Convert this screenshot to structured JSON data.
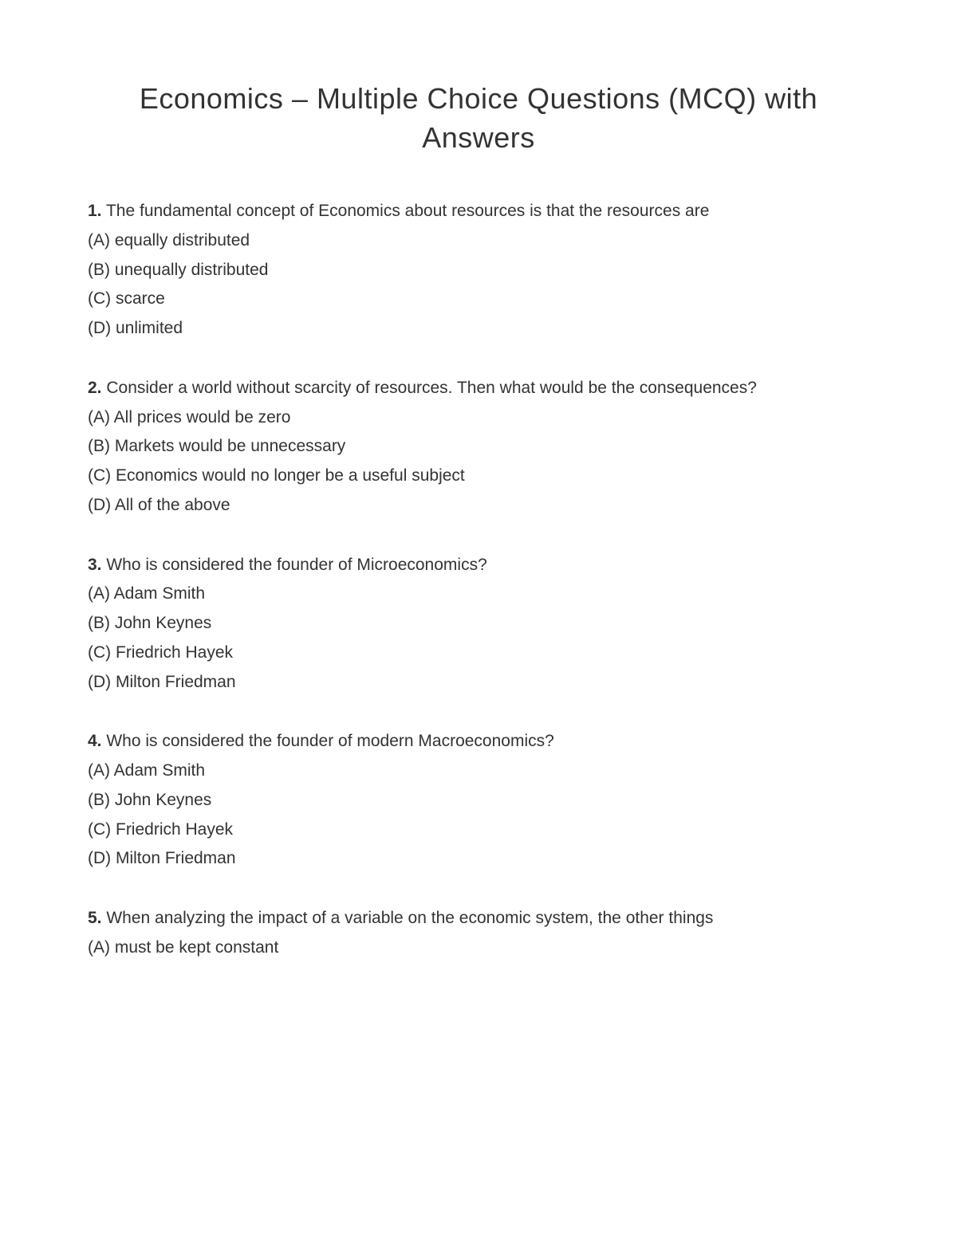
{
  "title": "Economics – Multiple Choice Questions (MCQ) with Answers",
  "questions": [
    {
      "number": "1.",
      "text": "The fundamental concept of Economics about resources is that the resources are",
      "options": [
        "(A) equally distributed",
        "(B) unequally distributed",
        "(C) scarce",
        "(D) unlimited"
      ]
    },
    {
      "number": "2.",
      "text": "Consider a world without scarcity of resources. Then what would be the consequences?",
      "options": [
        "(A) All prices would be zero",
        "(B) Markets would be unnecessary",
        "(C) Economics would no longer be a useful subject",
        "(D) All of the above"
      ]
    },
    {
      "number": "3.",
      "text": "Who is considered the founder of Microeconomics?",
      "options": [
        "(A) Adam Smith",
        "(B) John Keynes",
        "(C) Friedrich Hayek",
        "(D) Milton Friedman"
      ]
    },
    {
      "number": "4.",
      "text": "Who is considered the founder of modern Macroeconomics?",
      "options": [
        "(A) Adam Smith",
        "(B) John Keynes",
        "(C) Friedrich Hayek",
        "(D) Milton Friedman"
      ]
    },
    {
      "number": "5.",
      "text": "When analyzing the impact of a variable on the economic system, the other things",
      "options": [
        "(A) must be kept constant"
      ]
    }
  ],
  "colors": {
    "background": "#ffffff",
    "text": "#333333"
  },
  "typography": {
    "title_fontsize": 36,
    "body_fontsize": 21,
    "font_family": "Verdana"
  }
}
